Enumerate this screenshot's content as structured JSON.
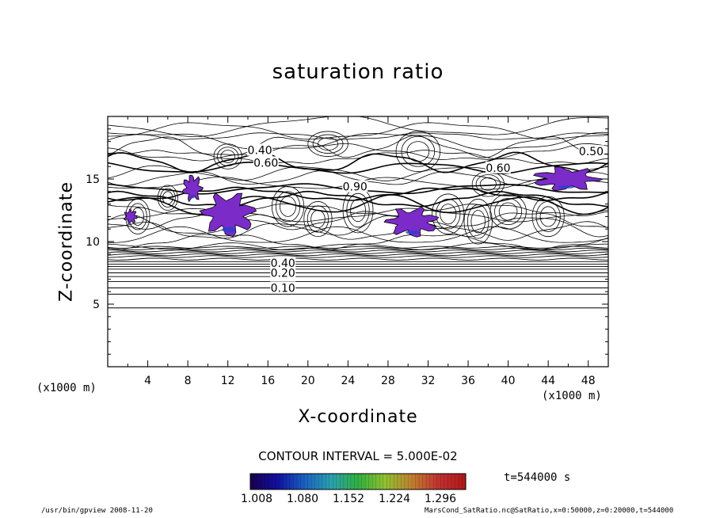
{
  "chart_data": {
    "type": "contour",
    "title": "saturation ratio",
    "xlabel": "X-coordinate",
    "ylabel": "Z-coordinate",
    "x_unit": "(x1000 m)",
    "z_unit": "(x1000 m)",
    "xlim": [
      0,
      50
    ],
    "ylim": [
      0,
      20
    ],
    "x_ticks": [
      4,
      8,
      12,
      16,
      20,
      24,
      28,
      32,
      36,
      40,
      44,
      48
    ],
    "y_ticks": [
      5,
      10,
      15
    ],
    "contour_interval_text": "CONTOUR INTERVAL = 5.000E-02",
    "contour_labels": [
      "0.10",
      "0.20",
      "0.40",
      "0.50",
      "0.60",
      "0.90"
    ],
    "stratified_levels_z": [
      4.7,
      5.8,
      6.3,
      6.8,
      7.2,
      7.5,
      7.8,
      8.0,
      8.2,
      8.4,
      8.6,
      8.8,
      8.95,
      9.1,
      9.25,
      9.4,
      9.55
    ],
    "labeled_levels": [
      {
        "label": "0.10",
        "x": 17.5,
        "z": 6.3
      },
      {
        "label": "0.20",
        "x": 17.5,
        "z": 7.5
      },
      {
        "label": "0.40",
        "x": 17.5,
        "z": 8.3
      },
      {
        "label": "0.40",
        "x": 15.2,
        "z": 17.3
      },
      {
        "label": "0.50",
        "x": 48.3,
        "z": 17.2
      },
      {
        "label": "0.60",
        "x": 15.8,
        "z": 16.3
      },
      {
        "label": "0.60",
        "x": 39.0,
        "z": 15.9
      },
      {
        "label": "0.90",
        "x": 24.7,
        "z": 14.4
      }
    ],
    "supersaturated_regions": [
      {
        "x": [
          7.4,
          9.5
        ],
        "z": [
          13.2,
          15.4
        ]
      },
      {
        "x": [
          9.3,
          14.9
        ],
        "z": [
          10.3,
          14.0
        ]
      },
      {
        "x": [
          1.6,
          3.0
        ],
        "z": [
          11.4,
          12.6
        ]
      },
      {
        "x": [
          27.7,
          33.2
        ],
        "z": [
          10.3,
          12.8
        ]
      },
      {
        "x": [
          42.2,
          49.3
        ],
        "z": [
          14.0,
          16.0
        ]
      }
    ],
    "colorbar": {
      "ticks": [
        "1.008",
        "1.080",
        "1.152",
        "1.224",
        "1.296"
      ],
      "colors": [
        "#1a0050",
        "#1010a0",
        "#1a60c0",
        "#2aa0b0",
        "#30b040",
        "#90c030",
        "#c08030",
        "#c03030",
        "#b01818"
      ]
    },
    "fill_color": "#7b2cc8",
    "time_label": "t=544000 s",
    "grid": false
  },
  "footer": {
    "left": "/usr/bin/gpview  2008-11-20",
    "right": "MarsCond_SatRatio.nc@SatRatio,x=0:50000,z=0:20000,t=544000"
  }
}
